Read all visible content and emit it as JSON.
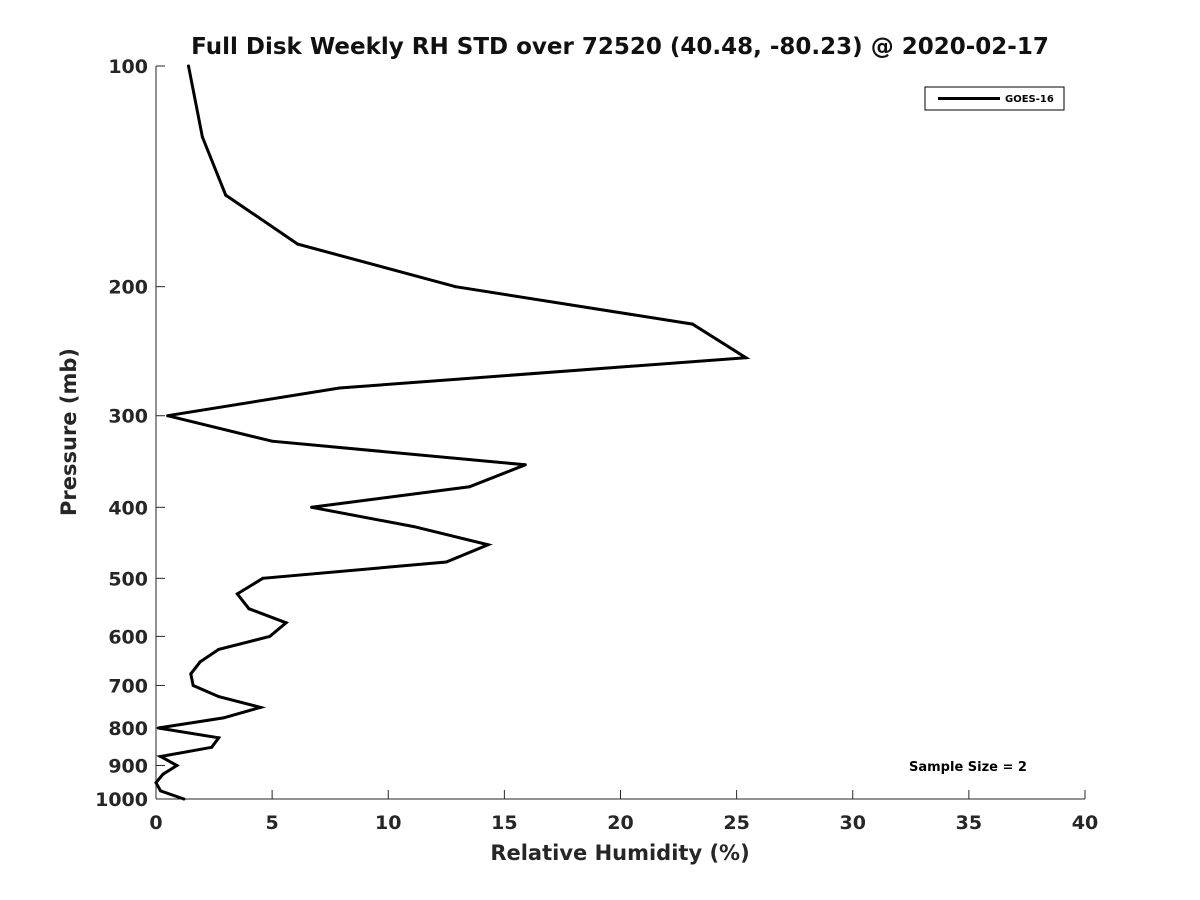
{
  "chart_data": {
    "type": "line",
    "title": "Full Disk Weekly RH STD over 72520 (40.48, -80.23) @ 2020-02-17",
    "xlabel": "Relative Humidity (%)",
    "ylabel": "Pressure (mb)",
    "xlim": [
      0,
      40
    ],
    "ylim": [
      100,
      1000
    ],
    "yscale": "log",
    "yreversed": true,
    "xticks": [
      0,
      5,
      10,
      15,
      20,
      25,
      30,
      35,
      40
    ],
    "yticks": [
      100,
      200,
      300,
      400,
      500,
      600,
      700,
      800,
      900,
      1000
    ],
    "grid": false,
    "legend": {
      "position": "top-right",
      "entries": [
        "GOES-16"
      ]
    },
    "annotation": "Sample Size = 2",
    "series": [
      {
        "name": "GOES-16",
        "color": "#000000",
        "points": [
          {
            "rh": 1.4,
            "p": 100
          },
          {
            "rh": 2.0,
            "p": 125
          },
          {
            "rh": 3.0,
            "p": 150
          },
          {
            "rh": 6.1,
            "p": 175
          },
          {
            "rh": 12.9,
            "p": 200
          },
          {
            "rh": 23.1,
            "p": 225
          },
          {
            "rh": 25.4,
            "p": 250
          },
          {
            "rh": 7.9,
            "p": 275
          },
          {
            "rh": 0.5,
            "p": 300
          },
          {
            "rh": 5.0,
            "p": 325
          },
          {
            "rh": 15.9,
            "p": 350
          },
          {
            "rh": 13.5,
            "p": 375
          },
          {
            "rh": 6.7,
            "p": 400
          },
          {
            "rh": 11.1,
            "p": 425
          },
          {
            "rh": 14.3,
            "p": 450
          },
          {
            "rh": 12.5,
            "p": 475
          },
          {
            "rh": 4.6,
            "p": 500
          },
          {
            "rh": 3.5,
            "p": 525
          },
          {
            "rh": 4.0,
            "p": 550
          },
          {
            "rh": 5.6,
            "p": 575
          },
          {
            "rh": 4.9,
            "p": 600
          },
          {
            "rh": 2.7,
            "p": 625
          },
          {
            "rh": 1.9,
            "p": 650
          },
          {
            "rh": 1.5,
            "p": 675
          },
          {
            "rh": 1.6,
            "p": 700
          },
          {
            "rh": 2.7,
            "p": 725
          },
          {
            "rh": 4.5,
            "p": 750
          },
          {
            "rh": 2.9,
            "p": 775
          },
          {
            "rh": 0.1,
            "p": 800
          },
          {
            "rh": 2.7,
            "p": 825
          },
          {
            "rh": 2.4,
            "p": 850
          },
          {
            "rh": 0.2,
            "p": 875
          },
          {
            "rh": 0.9,
            "p": 900
          },
          {
            "rh": 0.3,
            "p": 925
          },
          {
            "rh": 0.0,
            "p": 950
          },
          {
            "rh": 0.2,
            "p": 975
          },
          {
            "rh": 1.2,
            "p": 1000
          }
        ]
      }
    ]
  }
}
